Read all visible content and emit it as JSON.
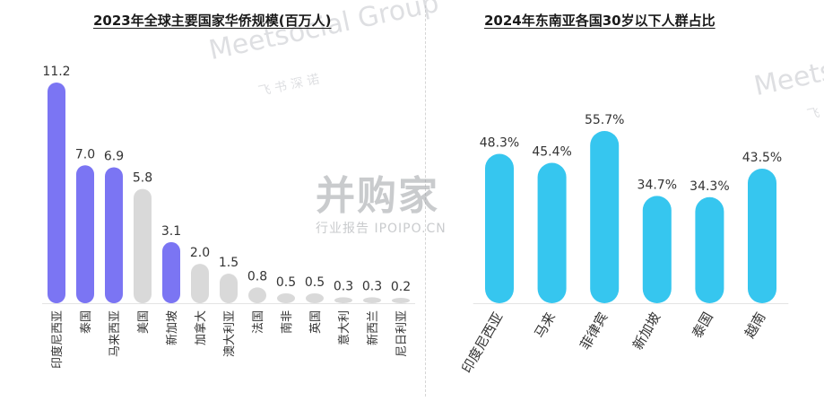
{
  "watermarks": {
    "brand_main": "并购家",
    "brand_sub": "行业报告 IPOIPO.CN",
    "meetsocial": "Meetsocial Group",
    "meetsocial_cn": "飞 书 深 诺",
    "meetsocial_right": "Meets",
    "meetsocial_right_cn": "飞"
  },
  "colors": {
    "highlight": "#7b75f3",
    "muted": "#d9d9d9",
    "cyan": "#36c6ef",
    "text": "#333333"
  },
  "chart_data": [
    {
      "type": "bar",
      "title": "2023年全球主要国家华侨规模(百万人)",
      "categories": [
        "印度尼西亚",
        "泰国",
        "马来西亚",
        "美国",
        "新加坡",
        "加拿大",
        "澳大利亚",
        "法国",
        "南非",
        "英国",
        "意大利",
        "新西兰",
        "尼日利亚"
      ],
      "values": [
        11.2,
        7.0,
        6.9,
        5.8,
        3.1,
        2.0,
        1.5,
        0.8,
        0.5,
        0.5,
        0.3,
        0.3,
        0.2
      ],
      "labels": [
        "11.2",
        "7.0",
        "6.9",
        "5.8",
        "3.1",
        "2.0",
        "1.5",
        "0.8",
        "0.5",
        "0.5",
        "0.3",
        "0.3",
        "0.2"
      ],
      "highlighted": [
        true,
        true,
        true,
        false,
        true,
        false,
        false,
        false,
        false,
        false,
        false,
        false,
        false
      ],
      "ylim": [
        0,
        11.2
      ],
      "grid": false
    },
    {
      "type": "bar",
      "title": "2024年东南亚各国30岁以下人群占比",
      "categories": [
        "印度尼西亚",
        "马来",
        "菲律宾",
        "新加坡",
        "泰国",
        "越南"
      ],
      "values": [
        48.3,
        45.4,
        55.7,
        34.7,
        34.3,
        43.5
      ],
      "labels": [
        "48.3%",
        "45.4%",
        "55.7%",
        "34.7%",
        "34.3%",
        "43.5%"
      ],
      "ylim": [
        0,
        55.7
      ],
      "grid": false
    }
  ]
}
